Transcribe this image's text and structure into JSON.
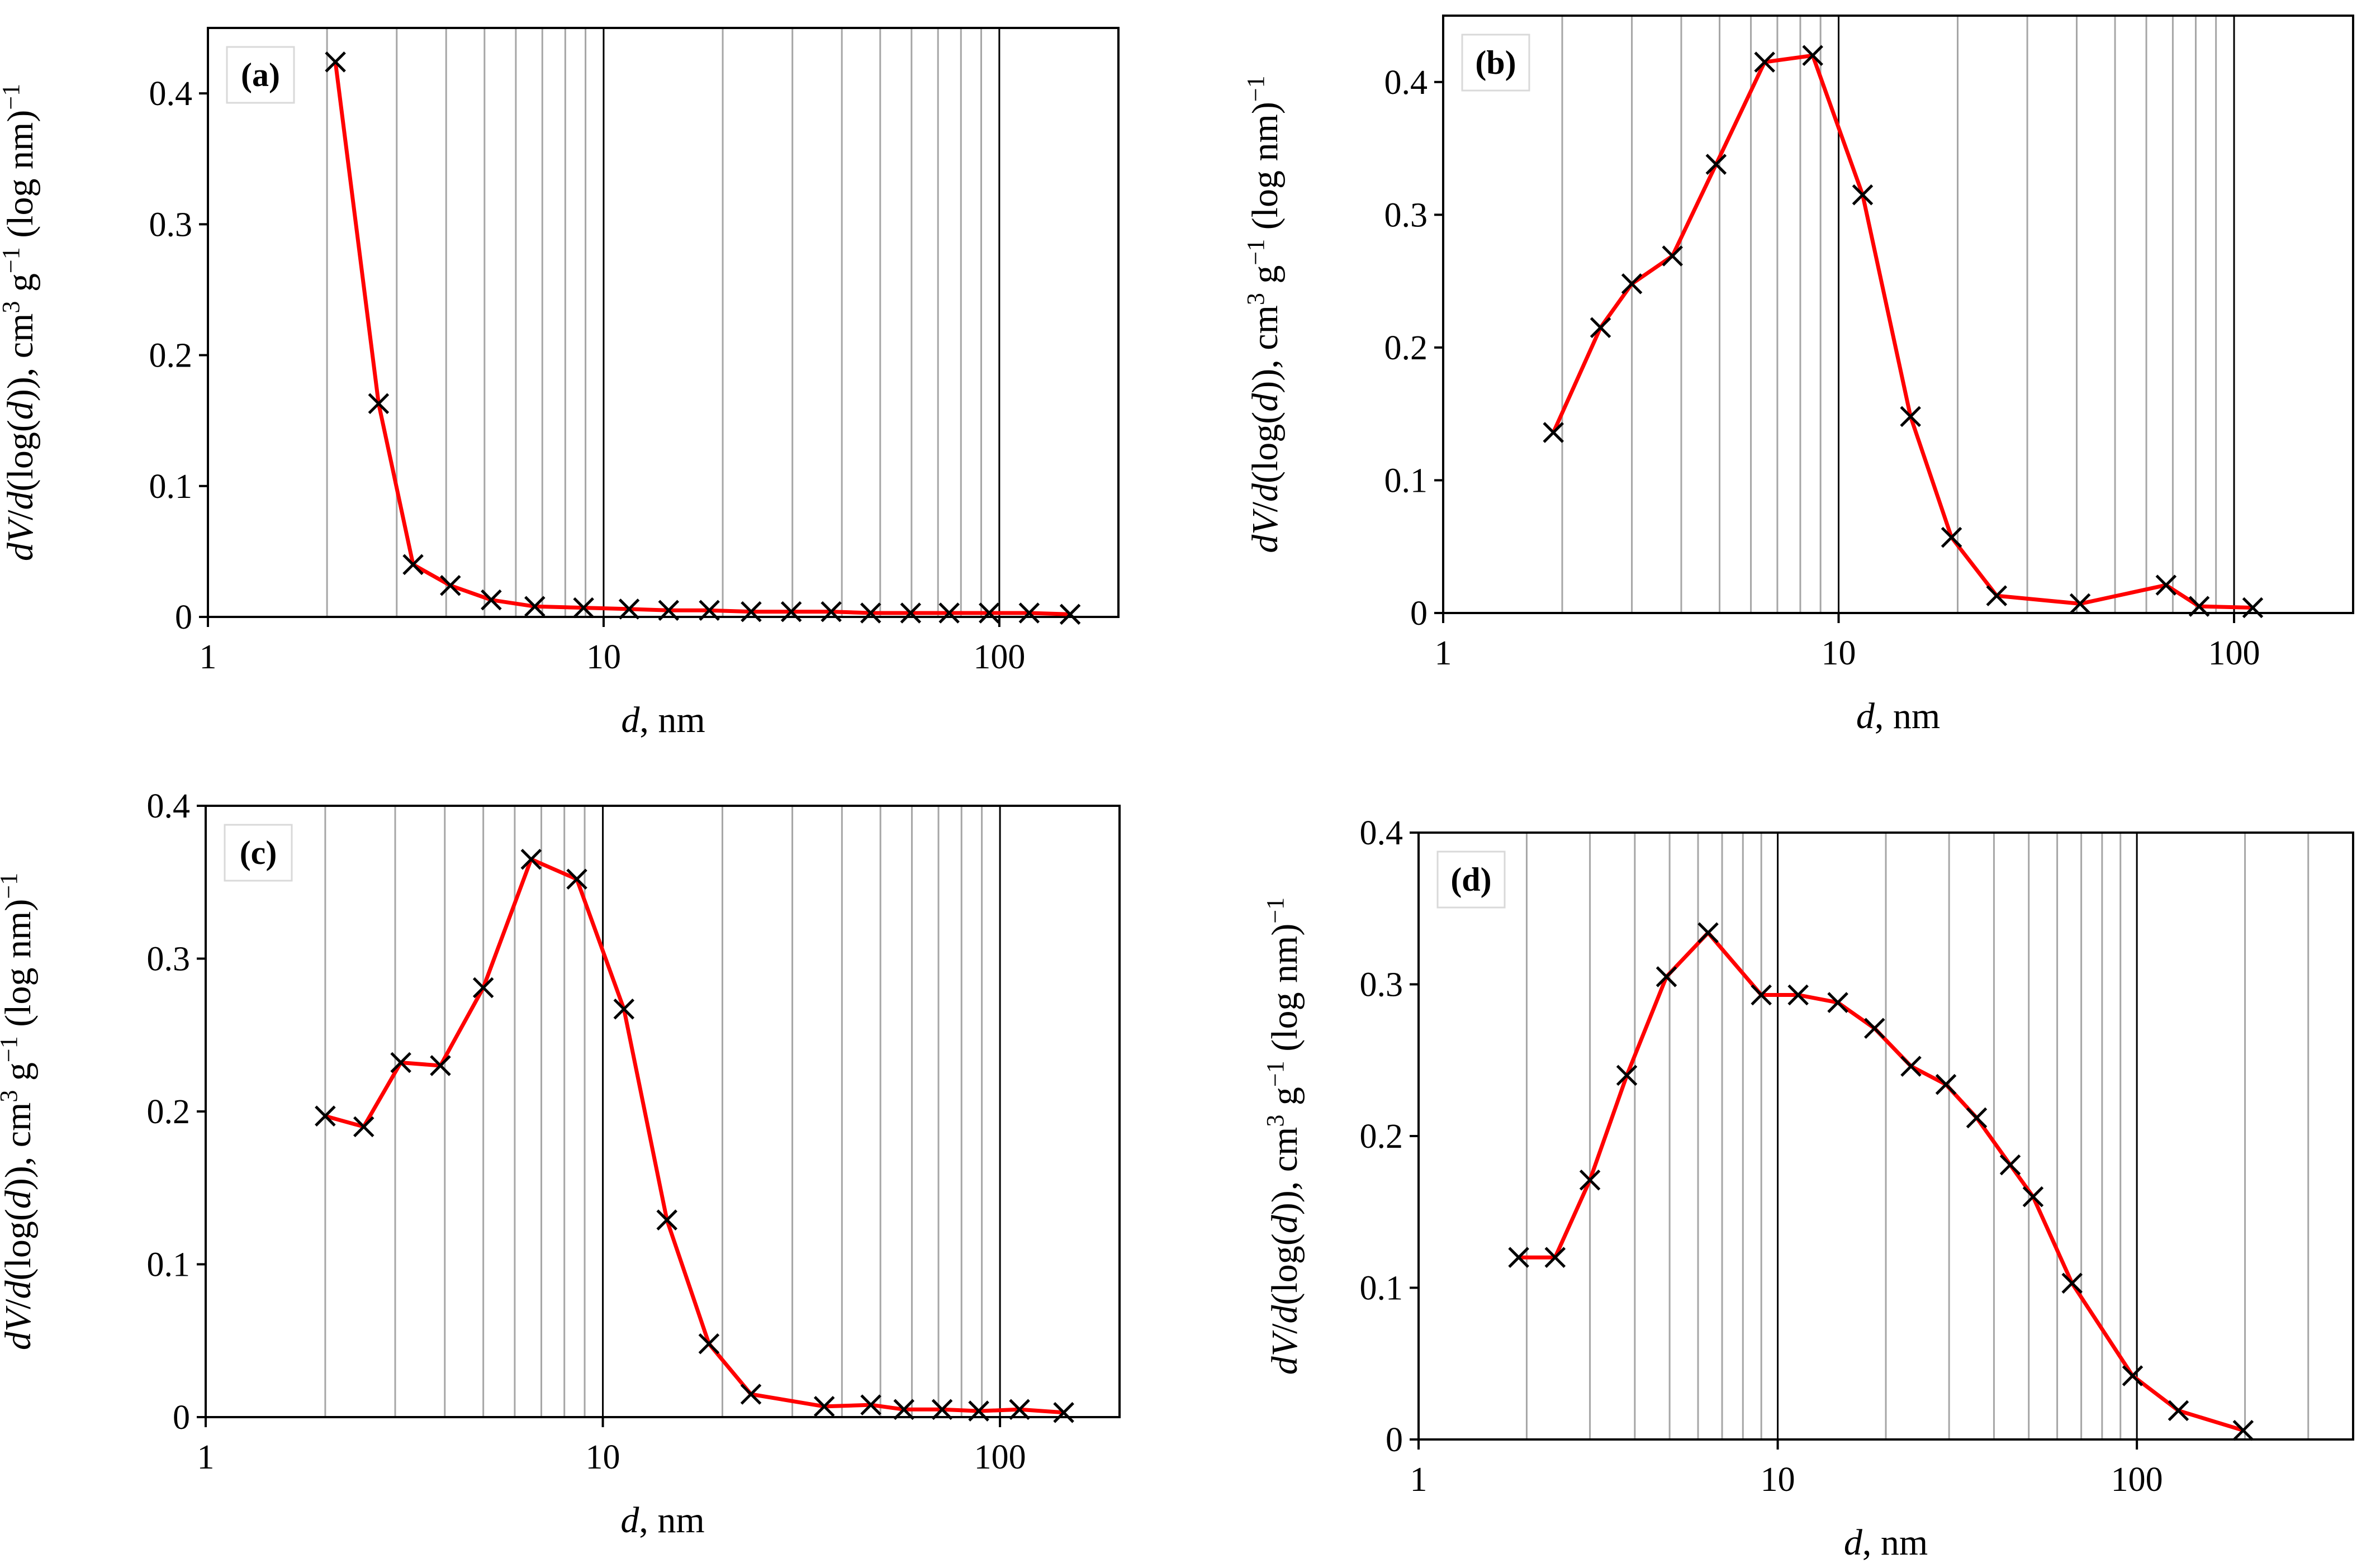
{
  "figure": {
    "x_axis_label_italic": "d",
    "x_axis_label_rest": ", nm",
    "y_axis_label_parts": [
      "dV",
      "/",
      "d",
      "(log(",
      "d",
      ")), cm",
      "3",
      " g",
      "−1",
      " (log nm)",
      "−1"
    ]
  },
  "colors": {
    "series": "#ff0000",
    "marker": "#000000",
    "minor_grid": "#a6a6a6",
    "major_grid": "#000000"
  },
  "chart_data": [
    {
      "type": "line",
      "panel": "a",
      "xscale": "log",
      "xlim": [
        1,
        200
      ],
      "ylim": [
        0,
        0.45
      ],
      "xticks": [
        1,
        10,
        100
      ],
      "xtick_labels": [
        "1",
        "10",
        "100"
      ],
      "yticks": [
        0,
        0.1,
        0.2,
        0.3,
        0.4
      ],
      "ytick_labels": [
        "0",
        "0.1",
        "0.2",
        "0.3",
        "0.4"
      ],
      "grid": "vertical log gridlines",
      "grid_max": 100,
      "legend": "top-left",
      "series": [
        {
          "name": "(a)",
          "x": [
            2.1,
            2.7,
            3.3,
            4.1,
            5.2,
            6.7,
            8.9,
            11.6,
            14.6,
            18.5,
            23.6,
            29.8,
            37.6,
            47.3,
            59.7,
            74.7,
            94.3,
            119,
            151
          ],
          "y": [
            0.424,
            0.163,
            0.04,
            0.024,
            0.013,
            0.008,
            0.007,
            0.006,
            0.005,
            0.005,
            0.004,
            0.004,
            0.004,
            0.003,
            0.003,
            0.003,
            0.003,
            0.003,
            0.002
          ]
        }
      ]
    },
    {
      "type": "line",
      "panel": "b",
      "xscale": "log",
      "xlim": [
        1,
        200
      ],
      "ylim": [
        0,
        0.45
      ],
      "xticks": [
        1,
        10,
        100
      ],
      "xtick_labels": [
        "1",
        "10",
        "100"
      ],
      "yticks": [
        0,
        0.1,
        0.2,
        0.3,
        0.4
      ],
      "ytick_labels": [
        "0",
        "0.1",
        "0.2",
        "0.3",
        "0.4"
      ],
      "grid": "vertical log gridlines",
      "grid_max": 100,
      "legend": "top-left",
      "series": [
        {
          "name": "(b)",
          "x": [
            1.9,
            2.5,
            3.0,
            3.8,
            4.9,
            6.5,
            8.6,
            11.5,
            15.2,
            19.3,
            25.1,
            40.8,
            67.3,
            81.6,
            111.5
          ],
          "y": [
            0.136,
            0.215,
            0.248,
            0.269,
            0.338,
            0.415,
            0.42,
            0.315,
            0.148,
            0.057,
            0.013,
            0.007,
            0.021,
            0.005,
            0.004
          ]
        }
      ]
    },
    {
      "type": "line",
      "panel": "c",
      "xscale": "log",
      "xlim": [
        1,
        200
      ],
      "ylim": [
        0,
        0.4
      ],
      "xticks": [
        1,
        10,
        100
      ],
      "xtick_labels": [
        "1",
        "10",
        "100"
      ],
      "yticks": [
        0,
        0.1,
        0.2,
        0.3,
        0.4
      ],
      "ytick_labels": [
        "0",
        "0.1",
        "0.2",
        "0.3",
        "0.4"
      ],
      "grid": "vertical log gridlines",
      "grid_max": 100,
      "legend": "top-left",
      "series": [
        {
          "name": "(c)",
          "x": [
            2.0,
            2.5,
            3.1,
            3.9,
            5.0,
            6.6,
            8.6,
            11.3,
            14.5,
            18.5,
            23.6,
            36.1,
            47.3,
            57.3,
            71.5,
            88.4,
            112,
            144.7
          ],
          "y": [
            0.197,
            0.19,
            0.232,
            0.23,
            0.281,
            0.365,
            0.352,
            0.267,
            0.129,
            0.048,
            0.015,
            0.007,
            0.008,
            0.005,
            0.005,
            0.004,
            0.005,
            0.003
          ]
        }
      ]
    },
    {
      "type": "line",
      "panel": "d",
      "xscale": "log",
      "xlim": [
        1,
        400
      ],
      "ylim": [
        0,
        0.4
      ],
      "xticks": [
        1,
        10,
        100
      ],
      "xtick_labels": [
        "1",
        "10",
        "100"
      ],
      "yticks": [
        0,
        0.1,
        0.2,
        0.3,
        0.4
      ],
      "ytick_labels": [
        "0",
        "0.1",
        "0.2",
        "0.3",
        "0.4"
      ],
      "grid": "vertical log gridlines",
      "grid_max": 300,
      "legend": "top-left",
      "series": [
        {
          "name": "(d)",
          "x": [
            1.9,
            2.4,
            3.0,
            3.8,
            4.9,
            6.4,
            9.0,
            11.4,
            14.7,
            18.6,
            23.5,
            29.4,
            35.8,
            44.4,
            51.4,
            66.0,
            97.3,
            130.5,
            197.7
          ],
          "y": [
            0.12,
            0.12,
            0.171,
            0.24,
            0.305,
            0.334,
            0.293,
            0.293,
            0.288,
            0.271,
            0.246,
            0.234,
            0.212,
            0.181,
            0.16,
            0.103,
            0.042,
            0.019,
            0.006
          ]
        }
      ]
    }
  ]
}
